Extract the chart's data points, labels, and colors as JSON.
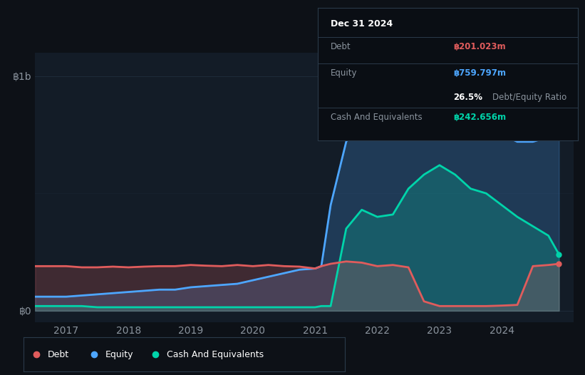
{
  "bg_color": "#0d1117",
  "plot_bg_color": "#131c27",
  "grid_color": "#1e2a38",
  "text_color": "#ffffff",
  "muted_text_color": "#8b949e",
  "debt_color": "#e05c5c",
  "equity_color": "#4da6ff",
  "cash_color": "#00d4aa",
  "ylabel_1b": "฿1b",
  "ylabel_0": "฿0",
  "xtick_labels": [
    "2017",
    "2018",
    "2019",
    "2020",
    "2021",
    "2022",
    "2023",
    "2024"
  ],
  "xtick_positions": [
    2017,
    2018,
    2019,
    2020,
    2021,
    2022,
    2023,
    2024
  ],
  "tooltip_title": "Dec 31 2024",
  "tooltip_debt_label": "Debt",
  "tooltip_debt_value": "฿201.023m",
  "tooltip_equity_label": "Equity",
  "tooltip_equity_value": "฿759.797m",
  "tooltip_ratio_value": "26.5%",
  "tooltip_ratio_label": "Debt/Equity Ratio",
  "tooltip_cash_label": "Cash And Equivalents",
  "tooltip_cash_value": "฿242.656m",
  "years": [
    2016.5,
    2017.0,
    2017.25,
    2017.5,
    2017.75,
    2018.0,
    2018.25,
    2018.5,
    2018.75,
    2019.0,
    2019.25,
    2019.5,
    2019.75,
    2020.0,
    2020.25,
    2020.5,
    2020.75,
    2021.0,
    2021.1,
    2021.25,
    2021.5,
    2021.75,
    2022.0,
    2022.25,
    2022.5,
    2022.75,
    2023.0,
    2023.25,
    2023.5,
    2023.75,
    2024.0,
    2024.25,
    2024.5,
    2024.75,
    2024.92
  ],
  "equity": [
    0.06,
    0.06,
    0.065,
    0.07,
    0.075,
    0.08,
    0.085,
    0.09,
    0.09,
    0.1,
    0.105,
    0.11,
    0.115,
    0.13,
    0.145,
    0.16,
    0.175,
    0.18,
    0.19,
    0.45,
    0.72,
    0.82,
    0.85,
    0.88,
    0.92,
    0.96,
    0.95,
    0.87,
    0.82,
    0.78,
    0.75,
    0.72,
    0.72,
    0.74,
    0.76
  ],
  "debt": [
    0.19,
    0.19,
    0.185,
    0.185,
    0.188,
    0.185,
    0.188,
    0.19,
    0.19,
    0.195,
    0.192,
    0.19,
    0.195,
    0.19,
    0.195,
    0.19,
    0.188,
    0.18,
    0.19,
    0.2,
    0.21,
    0.205,
    0.19,
    0.195,
    0.185,
    0.04,
    0.02,
    0.02,
    0.02,
    0.02,
    0.022,
    0.025,
    0.19,
    0.195,
    0.2
  ],
  "cash": [
    0.02,
    0.02,
    0.02,
    0.015,
    0.015,
    0.015,
    0.015,
    0.015,
    0.015,
    0.015,
    0.015,
    0.015,
    0.015,
    0.015,
    0.015,
    0.015,
    0.015,
    0.015,
    0.02,
    0.02,
    0.35,
    0.43,
    0.4,
    0.41,
    0.52,
    0.58,
    0.62,
    0.58,
    0.52,
    0.5,
    0.45,
    0.4,
    0.36,
    0.32,
    0.24
  ]
}
